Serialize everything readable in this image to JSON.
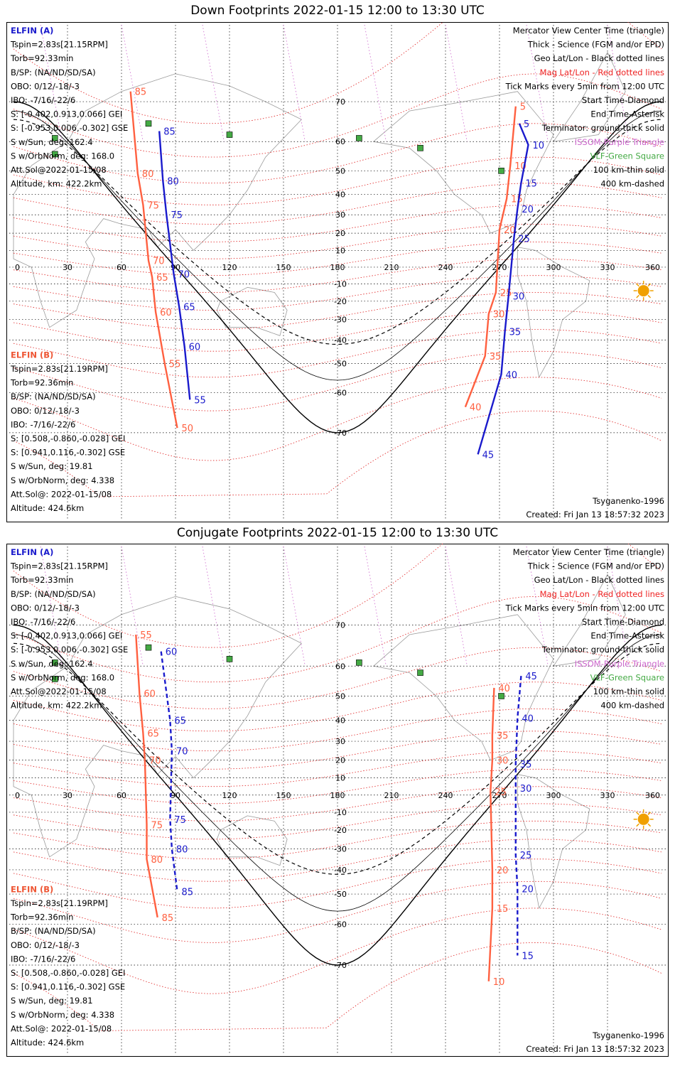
{
  "colors": {
    "trackA": "#1a1acc",
    "trackB": "#ff6040",
    "magGrid": "#e02020",
    "geoGrid": "#000000",
    "mlt": "#cc66cc",
    "coast": "#9a9a9a",
    "vlf": "#44aa44",
    "elfinLabel": "#1a1acc",
    "elfinBLabel": "#ee5533",
    "sun": "#f0a000"
  },
  "panels": [
    {
      "title": "Down Footprints 2022-01-15 12:00 to 13:30 UTC",
      "legend": [
        {
          "text": "Mercator View Center Time (triangle)",
          "color": "#000000"
        },
        {
          "text": "Thick - Science (FGM and/or EPD)",
          "color": "#000000"
        },
        {
          "text": "Geo Lat/Lon - Black dotted lines",
          "color": "#000000"
        },
        {
          "text": "Mag Lat/Lon - Red dotted lines",
          "color": "#ee2222"
        },
        {
          "text": "Tick Marks every 5min from 12:00 UTC",
          "color": "#000000"
        },
        {
          "text": "Start Time-Diamond",
          "color": "#000000"
        },
        {
          "text": "End Time-Asterisk",
          "color": "#000000"
        },
        {
          "text": "Terminator: ground-thick solid",
          "color": "#000000"
        },
        {
          "text": "ISSOM-Purple Triangle",
          "color": "#cc66cc"
        },
        {
          "text": "VLF-Green Square",
          "color": "#44aa44"
        },
        {
          "text": "100 km-thin solid",
          "color": "#000000"
        },
        {
          "text": "400 km-dashed",
          "color": "#000000"
        }
      ],
      "elfinA": {
        "name": "ELFIN (A)",
        "lines": [
          "Tspin=2.83s[21.15RPM]",
          "Torb=92.33min",
          "B/SP: (NA/ND/SD/SA)",
          "OBO: 0/12/-18/-3",
          "IBO: -7/16/-22/6",
          "S: [-0.402,0.913,0.066] GEI",
          "S: [-0.953,0.006,-0.302] GSE",
          "S w/Sun, deg: 162.4",
          "S w/OrbNorm, deg: 168.0",
          "Att.Sol@2022-01-15/08",
          "Altitude, km: 422.2km"
        ]
      },
      "elfinB": {
        "name": "ELFIN (B)",
        "lines": [
          "Tspin=2.83s[21.19RPM]",
          "Torb=92.36min",
          "B/SP: (NA/ND/SD/SA)",
          "OBO: 0/12/-18/-3",
          "IBO: -7/16/-22/6",
          "S: [0.508,-0.860,-0.028] GEI",
          "S: [0.941,0.116,-0.302] GSE",
          "S w/Sun, deg: 19.81",
          "S w/OrbNorm, deg: 4.338",
          "Att.Sol@: 2022-01-15/08",
          "Altitude: 424.6km"
        ]
      },
      "model": "Tsyganenko-1996",
      "created": "Created: Fri Jan 13 18:57:32 2023"
    },
    {
      "title": "Conjugate Footprints 2022-01-15 12:00 to 13:30 UTC",
      "legend": [
        {
          "text": "Mercator View Center Time (triangle)",
          "color": "#000000"
        },
        {
          "text": "Thick - Science (FGM and/or EPD)",
          "color": "#000000"
        },
        {
          "text": "Geo Lat/Lon - Black dotted lines",
          "color": "#000000"
        },
        {
          "text": "Mag Lat/Lon - Red dotted lines",
          "color": "#ee2222"
        },
        {
          "text": "Tick Marks every 5min from 12:00 UTC",
          "color": "#000000"
        },
        {
          "text": "Start Time-Diamond",
          "color": "#000000"
        },
        {
          "text": "End Time-Asterisk",
          "color": "#000000"
        },
        {
          "text": "Terminator: ground-thick solid",
          "color": "#000000"
        },
        {
          "text": "ISSOM-Purple Triangle",
          "color": "#cc66cc"
        },
        {
          "text": "VLF-Green Square",
          "color": "#44aa44"
        },
        {
          "text": "100 km-thin solid",
          "color": "#000000"
        },
        {
          "text": "400 km-dashed",
          "color": "#000000"
        }
      ],
      "elfinA": {
        "name": "ELFIN (A)",
        "lines": [
          "Tspin=2.83s[21.15RPM]",
          "Torb=92.33min",
          "B/SP: (NA/ND/SD/SA)",
          "OBO: 0/12/-18/-3",
          "IBO: -7/16/-22/6",
          "S: [-0.402,0.913,0.066] GEI",
          "S: [-0.953,0.006,-0.302] GSE",
          "S w/Sun, deg: 162.4",
          "S w/OrbNorm, deg: 168.0",
          "Att.Sol@2022-01-15/08",
          "Altitude, km: 422.2km"
        ]
      },
      "elfinB": {
        "name": "ELFIN (B)",
        "lines": [
          "Tspin=2.83s[21.19RPM]",
          "Torb=92.36min",
          "B/SP: (NA/ND/SD/SA)",
          "OBO: 0/12/-18/-3",
          "IBO: -7/16/-22/6",
          "S: [0.508,-0.860,-0.028] GEI",
          "S: [0.941,0.116,-0.302] GSE",
          "S w/Sun, deg: 19.81",
          "S w/OrbNorm, deg: 4.338",
          "Att.Sol@: 2022-01-15/08",
          "Altitude: 424.6km"
        ]
      },
      "model": "Tsyganenko-1996",
      "created": "Created: Fri Jan 13 18:57:32 2023"
    }
  ],
  "map": {
    "lon_ticks": [
      "0",
      "30",
      "60",
      "90",
      "120",
      "150",
      "180",
      "210",
      "240",
      "270",
      "300",
      "330",
      "360"
    ],
    "lat_ticks": [
      "70",
      "60",
      "50",
      "40",
      "30",
      "20",
      "10",
      "-10",
      "-20",
      "-30",
      "-40",
      "-50",
      "-60",
      "-70"
    ],
    "lon_range": [
      0,
      360
    ],
    "projection": "Mercator"
  },
  "tracks": {
    "top": {
      "A": {
        "ticks": [
          {
            "label": "85",
            "lon": 81,
            "lat": 63
          },
          {
            "label": "80",
            "lon": 83,
            "lat": 46
          },
          {
            "label": "75",
            "lon": 85,
            "lat": 30
          },
          {
            "label": "70",
            "lon": 89,
            "lat": -4
          },
          {
            "label": "65",
            "lon": 92,
            "lat": -23
          },
          {
            "label": "60",
            "lon": 95,
            "lat": -43
          },
          {
            "label": "55",
            "lon": 98,
            "lat": -62
          },
          {
            "label": "5",
            "lon": 281,
            "lat": 65
          },
          {
            "label": "10",
            "lon": 286,
            "lat": 59
          },
          {
            "label": "15",
            "lon": 282,
            "lat": 45
          },
          {
            "label": "20",
            "lon": 280,
            "lat": 33
          },
          {
            "label": "25",
            "lon": 278,
            "lat": 17
          },
          {
            "label": "30",
            "lon": 275,
            "lat": -17
          },
          {
            "label": "35",
            "lon": 273,
            "lat": -36
          },
          {
            "label": "40",
            "lon": 271,
            "lat": -54
          },
          {
            "label": "45",
            "lon": 258,
            "lat": -74
          }
        ]
      },
      "B": {
        "ticks": [
          {
            "label": "85",
            "lon": 65,
            "lat": 72
          },
          {
            "label": "80",
            "lon": 69,
            "lat": 49
          },
          {
            "label": "75",
            "lon": 72,
            "lat": 35
          },
          {
            "label": "70",
            "lon": 75,
            "lat": 4
          },
          {
            "label": "65",
            "lon": 77,
            "lat": -6
          },
          {
            "label": "60",
            "lon": 79,
            "lat": -26
          },
          {
            "label": "55",
            "lon": 84,
            "lat": -50
          },
          {
            "label": "50",
            "lon": 91,
            "lat": -69
          },
          {
            "label": "5",
            "lon": 279,
            "lat": 69
          },
          {
            "label": "10",
            "lon": 276,
            "lat": 52
          },
          {
            "label": "15",
            "lon": 274,
            "lat": 38
          },
          {
            "label": "20",
            "lon": 270,
            "lat": 22
          },
          {
            "label": "25",
            "lon": 268,
            "lat": -15
          },
          {
            "label": "30",
            "lon": 264,
            "lat": -27
          },
          {
            "label": "35",
            "lon": 262,
            "lat": -47
          },
          {
            "label": "40",
            "lon": 251,
            "lat": -64
          }
        ]
      }
    },
    "bot": {
      "A": {
        "ticks": [
          {
            "label": "60",
            "lon": 82,
            "lat": 64
          },
          {
            "label": "65",
            "lon": 87,
            "lat": 40
          },
          {
            "label": "70",
            "lon": 88,
            "lat": 25
          },
          {
            "label": "75",
            "lon": 87,
            "lat": -14
          },
          {
            "label": "80",
            "lon": 88,
            "lat": -30
          },
          {
            "label": "85",
            "lon": 91,
            "lat": -49
          },
          {
            "label": "45",
            "lon": 282,
            "lat": 57
          },
          {
            "label": "40",
            "lon": 280,
            "lat": 41
          },
          {
            "label": "35",
            "lon": 279,
            "lat": 18
          },
          {
            "label": "30",
            "lon": 279,
            "lat": 4
          },
          {
            "label": "25",
            "lon": 279,
            "lat": -33
          },
          {
            "label": "20",
            "lon": 280,
            "lat": -48
          },
          {
            "label": "15",
            "lon": 280,
            "lat": -68
          }
        ]
      },
      "B": {
        "ticks": [
          {
            "label": "55",
            "lon": 68,
            "lat": 68
          },
          {
            "label": "60",
            "lon": 70,
            "lat": 51
          },
          {
            "label": "65",
            "lon": 72,
            "lat": 34
          },
          {
            "label": "70",
            "lon": 73,
            "lat": 20
          },
          {
            "label": "75",
            "lon": 74,
            "lat": -17
          },
          {
            "label": "80",
            "lon": 74,
            "lat": -35
          },
          {
            "label": "85",
            "lon": 80,
            "lat": -58
          },
          {
            "label": "40",
            "lon": 267,
            "lat": 53
          },
          {
            "label": "35",
            "lon": 266,
            "lat": 33
          },
          {
            "label": "30",
            "lon": 266,
            "lat": 20
          },
          {
            "label": "25",
            "lon": 265,
            "lat": 2
          },
          {
            "label": "20",
            "lon": 266,
            "lat": -40
          },
          {
            "label": "15",
            "lon": 266,
            "lat": -55
          },
          {
            "label": "10",
            "lon": 264,
            "lat": -73
          }
        ]
      }
    }
  }
}
